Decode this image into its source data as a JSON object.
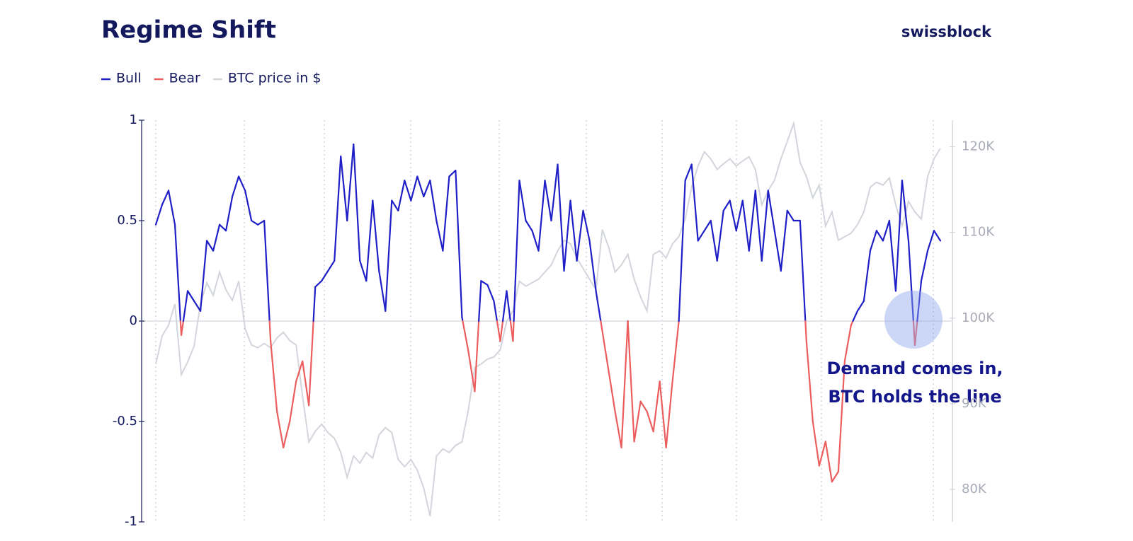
{
  "chart_data": {
    "type": "regime_line",
    "title": "Regime Shift",
    "brand": "swissblock",
    "annotation": [
      "Demand comes in,",
      "BTC holds the line"
    ],
    "legend": [
      {
        "name": "Bull",
        "color": "#1f1fc8"
      },
      {
        "name": "Bear",
        "color": "#ec5d5d"
      },
      {
        "name": "BTC price in $",
        "color": "#d3d5dc"
      }
    ],
    "categories": [
      null,
      null,
      null,
      null,
      null,
      null,
      null,
      null,
      null,
      null,
      null,
      null,
      null,
      null,
      null,
      null,
      null,
      null,
      null,
      null,
      null,
      null,
      null,
      null,
      null,
      null,
      null,
      null,
      null,
      null,
      null,
      null,
      null,
      null,
      null,
      null,
      null,
      null,
      null,
      null,
      null,
      null,
      null,
      null,
      null,
      null,
      null,
      null,
      null,
      null,
      null,
      null,
      null,
      null,
      null,
      null,
      null,
      null,
      null,
      null,
      null,
      null,
      null,
      null,
      null,
      null,
      null,
      null,
      null,
      null,
      null,
      null,
      null,
      null,
      null,
      null,
      null,
      null,
      null,
      null,
      null,
      null,
      null,
      null,
      null,
      null,
      null,
      null,
      null,
      null,
      null,
      null,
      null,
      null,
      null,
      null,
      null,
      null,
      null,
      null,
      null,
      null,
      null,
      null,
      null,
      null,
      null,
      null,
      null,
      null,
      null,
      null,
      null,
      null,
      null,
      null,
      null,
      null,
      null,
      null,
      null,
      null,
      null,
      null
    ],
    "series": [
      {
        "positive_color": "#1f1fc8",
        "negative_color": "#ec5d5d",
        "values": [
          0.48,
          0.58,
          0.65,
          0.48,
          -0.07,
          0.15,
          0.1,
          0.05,
          0.4,
          0.35,
          0.48,
          0.45,
          0.62,
          0.72,
          0.65,
          0.5,
          0.48,
          0.5,
          -0.1,
          -0.45,
          -0.63,
          -0.5,
          -0.3,
          -0.2,
          -0.42,
          0.17,
          0.2,
          0.25,
          0.3,
          0.82,
          0.5,
          0.88,
          0.3,
          0.2,
          0.6,
          0.25,
          0.05,
          0.6,
          0.55,
          0.7,
          0.6,
          0.72,
          0.62,
          0.7,
          0.5,
          0.35,
          0.72,
          0.75,
          0.02,
          -0.15,
          -0.35,
          0.2,
          0.18,
          0.1,
          -0.1,
          0.15,
          -0.1,
          0.7,
          0.5,
          0.45,
          0.35,
          0.7,
          0.5,
          0.78,
          0.25,
          0.6,
          0.3,
          0.55,
          0.4,
          0.15,
          -0.05,
          -0.25,
          -0.45,
          -0.63,
          0.0,
          -0.6,
          -0.4,
          -0.45,
          -0.55,
          -0.3,
          -0.63,
          -0.3,
          0.0,
          0.7,
          0.78,
          0.4,
          0.45,
          0.5,
          0.3,
          0.55,
          0.6,
          0.45,
          0.6,
          0.35,
          0.65,
          0.3,
          0.65,
          0.45,
          0.25,
          0.55,
          0.5,
          0.5,
          -0.1,
          -0.5,
          -0.72,
          -0.6,
          -0.8,
          -0.75,
          -0.2,
          -0.02,
          0.05,
          0.1,
          0.35,
          0.45,
          0.4,
          0.5,
          0.15,
          0.7,
          0.4,
          -0.12,
          0.2,
          0.35,
          0.45,
          0.4
        ]
      },
      {
        "color": "#d3d5dc",
        "axis": "y2",
        "values": [
          94630,
          97930,
          99170,
          101650,
          93390,
          94880,
          96700,
          101650,
          104130,
          102640,
          105370,
          103300,
          102070,
          104300,
          98760,
          96860,
          96530,
          97030,
          96530,
          97690,
          98350,
          97360,
          96860,
          90910,
          85540,
          86780,
          87610,
          86620,
          85960,
          84310,
          81410,
          83890,
          83070,
          84310,
          83650,
          86370,
          87200,
          86620,
          83480,
          82650,
          83480,
          82240,
          80180,
          76870,
          83890,
          84720,
          84310,
          85130,
          85540,
          89260,
          94220,
          94630,
          95210,
          95460,
          96280,
          99590,
          100830,
          104300,
          103720,
          104130,
          104540,
          105370,
          106200,
          107850,
          109090,
          108670,
          107020,
          105780,
          104540,
          103300,
          110330,
          108260,
          105370,
          106200,
          107440,
          104540,
          102480,
          100830,
          107440,
          107850,
          107020,
          108670,
          109500,
          111560,
          115280,
          117760,
          119410,
          118590,
          117350,
          118010,
          118590,
          117760,
          118340,
          118830,
          117350,
          113220,
          114870,
          116110,
          118590,
          120650,
          122720,
          118170,
          116520,
          114040,
          115530,
          110740,
          112390,
          109090,
          109500,
          109910,
          110900,
          112390,
          115280,
          115860,
          115530,
          116360,
          113220,
          110740,
          113630,
          112390,
          111560,
          116520,
          118590,
          119820
        ]
      }
    ],
    "ylim": [
      -1,
      1
    ],
    "yticks": [
      -1,
      -0.5,
      0,
      0.5,
      1
    ],
    "y2lim": [
      76200,
      123100
    ],
    "y2ticks": [
      {
        "value": 80000,
        "label": "80K"
      },
      {
        "value": 90000,
        "label": "90K"
      },
      {
        "value": 100000,
        "label": "100K"
      },
      {
        "value": 110000,
        "label": "110K"
      },
      {
        "value": 120000,
        "label": "120K"
      }
    ]
  }
}
